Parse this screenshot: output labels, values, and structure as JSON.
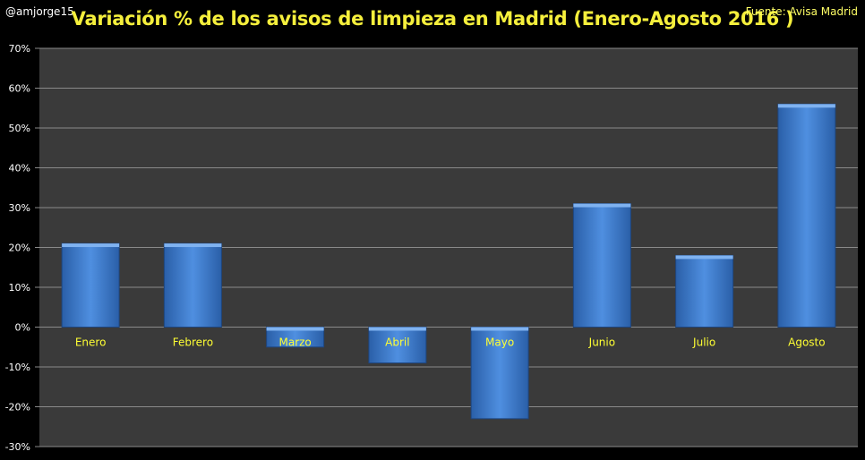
{
  "header": {
    "author": "@amjorge15",
    "title": "Variación % de los avisos de limpieza en Madrid (Enero-Agosto 2016 )",
    "source": "Fuente: Avisa Madrid"
  },
  "colors": {
    "background": "#000000",
    "plot_area": "#3a3a3a",
    "bar": "#3f7fd0",
    "title": "#f5ef3c",
    "category_label": "#ffff33"
  },
  "chart_data": {
    "type": "bar",
    "title": "Variación % de los avisos de limpieza en Madrid (Enero-Agosto 2016 )",
    "categories": [
      "Enero",
      "Febrero",
      "Marzo",
      "Abril",
      "Mayo",
      "Junio",
      "Julio",
      "Agosto"
    ],
    "values": [
      21,
      21,
      -5,
      -9,
      -23,
      31,
      18,
      56
    ],
    "ylim": [
      -30,
      70
    ],
    "yticks": [
      -30,
      -20,
      -10,
      0,
      10,
      20,
      30,
      40,
      50,
      60,
      70
    ],
    "ytick_labels": [
      "-30%",
      "-20%",
      "-10%",
      "0%",
      "10%",
      "20%",
      "30%",
      "40%",
      "50%",
      "60%",
      "70%"
    ],
    "grid": true,
    "legend": false
  }
}
